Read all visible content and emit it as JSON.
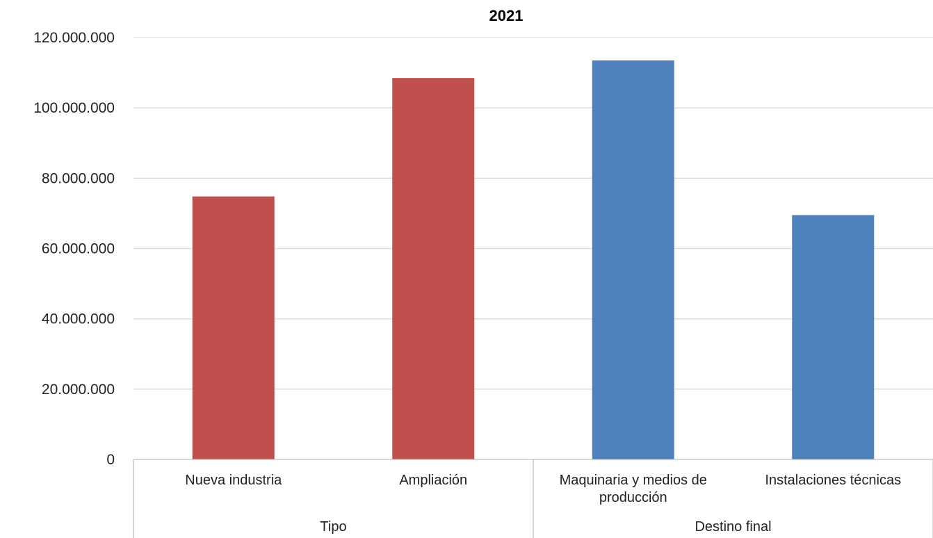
{
  "chart_data": {
    "type": "bar",
    "title": "2021",
    "xlabel": "",
    "ylabel": "",
    "ylim": [
      0,
      120000000
    ],
    "y_ticks": [
      0,
      20000000,
      40000000,
      60000000,
      80000000,
      100000000,
      120000000
    ],
    "y_tick_labels": [
      "0",
      "20.000.000",
      "40.000.000",
      "60.000.000",
      "80.000.000",
      "100.000.000",
      "120.000.000"
    ],
    "grid": true,
    "legend": "none",
    "categories": [
      [
        "Nueva industria"
      ],
      [
        "Ampliación"
      ],
      [
        "Maquinaria y medios de",
        "producción"
      ],
      [
        "Instalaciones técnicas"
      ]
    ],
    "values": [
      74800000,
      108500000,
      113500000,
      69500000
    ],
    "colors": [
      "#c0504d",
      "#c0504d",
      "#4f81bd",
      "#4f81bd"
    ],
    "groups": [
      {
        "label": "Tipo",
        "span": [
          0,
          1
        ]
      },
      {
        "label": "Destino final",
        "span": [
          2,
          3
        ]
      }
    ]
  }
}
